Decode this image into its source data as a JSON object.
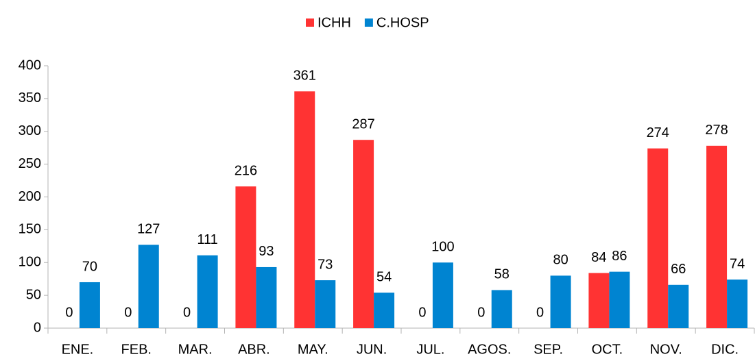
{
  "chart_data": {
    "type": "bar",
    "categories": [
      "ENE.",
      "FEB.",
      "MAR.",
      "ABR.",
      "MAY.",
      "JUN.",
      "JUL.",
      "AGOS.",
      "SEP.",
      "OCT.",
      "NOV.",
      "DIC."
    ],
    "series": [
      {
        "name": "ICHH",
        "color": "#ff3333",
        "values": [
          0,
          0,
          0,
          216,
          361,
          287,
          0,
          0,
          0,
          84,
          274,
          278
        ]
      },
      {
        "name": "C.HOSP",
        "color": "#0084d1",
        "values": [
          70,
          127,
          111,
          93,
          73,
          54,
          100,
          58,
          80,
          86,
          66,
          74
        ]
      }
    ],
    "ylim": [
      0,
      400
    ],
    "yticks": [
      0,
      50,
      100,
      150,
      200,
      250,
      300,
      350,
      400
    ],
    "grid": false,
    "legend": "top"
  }
}
